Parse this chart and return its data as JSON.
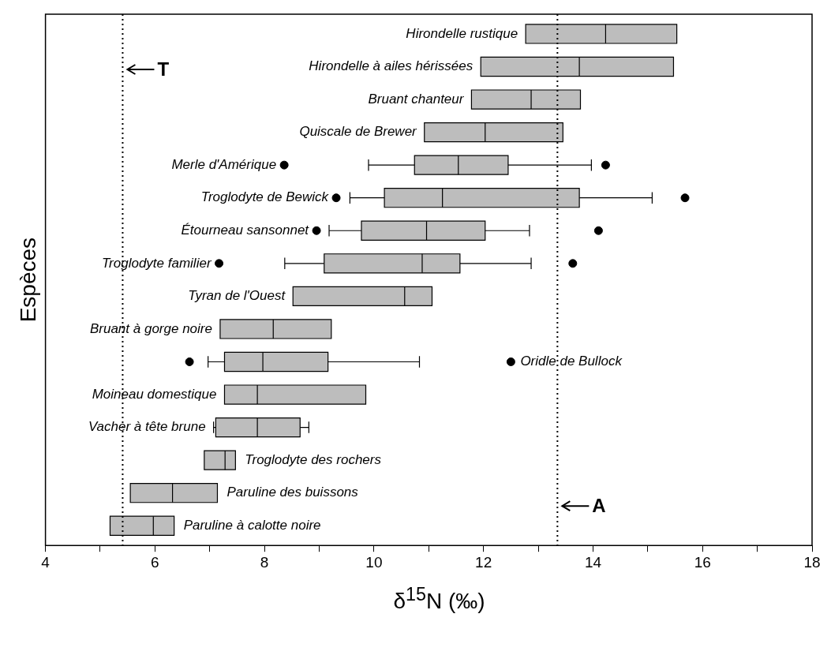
{
  "chart_data": {
    "type": "box",
    "orientation": "horizontal",
    "xlabel": "δ$^{15}$N (‰)",
    "ylabel": "Espèces",
    "categories": [
      "Hirondelle rustique",
      "Hirondelle à ailes hérissées",
      "Bruant chanteur",
      "Quiscale de Brewer",
      "Merle d'Amérique",
      "Troglodyte de Bewick",
      "Étourneau sansonnet",
      "Troglodyte familier",
      "Tyran de l'Ouest",
      "Bruant à gorge noire",
      "Oridle de Bullock",
      "Moineau domestique",
      "Vacher à tête brune",
      "Troglodyte des rochers",
      "Paruline des buissons",
      "Paruline à calotte noire"
    ],
    "boxes": [
      {
        "low": 12.77,
        "q1": 12.77,
        "median": 14.23,
        "q3": 15.53,
        "high": 15.53
      },
      {
        "low": 11.95,
        "q1": 11.95,
        "median": 13.75,
        "q3": 15.47,
        "high": 15.47
      },
      {
        "low": 11.78,
        "q1": 11.78,
        "median": 12.87,
        "q3": 13.77,
        "high": 13.77
      },
      {
        "low": 10.92,
        "q1": 10.92,
        "median": 12.03,
        "q3": 13.45,
        "high": 13.45
      },
      {
        "low": 9.9,
        "q1": 10.74,
        "median": 11.54,
        "q3": 12.45,
        "high": 13.97,
        "outliers": [
          8.36,
          14.23
        ]
      },
      {
        "low": 9.56,
        "q1": 10.19,
        "median": 11.25,
        "q3": 13.75,
        "high": 15.08,
        "outliers": [
          9.31,
          15.68
        ]
      },
      {
        "low": 9.18,
        "q1": 9.77,
        "median": 10.96,
        "q3": 12.03,
        "high": 12.84,
        "outliers": [
          8.95,
          14.1
        ]
      },
      {
        "low": 8.37,
        "q1": 9.09,
        "median": 10.88,
        "q3": 11.57,
        "high": 12.87,
        "outliers": [
          7.17,
          13.63
        ]
      },
      {
        "low": 8.52,
        "q1": 8.52,
        "median": 10.56,
        "q3": 11.06,
        "high": 11.06
      },
      {
        "low": 7.19,
        "q1": 7.19,
        "median": 8.16,
        "q3": 9.22,
        "high": 9.22
      },
      {
        "low": 6.97,
        "q1": 7.27,
        "median": 7.97,
        "q3": 9.16,
        "high": 10.83,
        "outliers": [
          6.63,
          12.5
        ]
      },
      {
        "low": 7.27,
        "q1": 7.27,
        "median": 7.87,
        "q3": 9.85,
        "high": 9.85
      },
      {
        "low": 7.07,
        "q1": 7.11,
        "median": 7.87,
        "q3": 8.65,
        "high": 8.81
      },
      {
        "low": 6.9,
        "q1": 6.9,
        "median": 7.28,
        "q3": 7.47,
        "high": 7.47
      },
      {
        "low": 5.55,
        "q1": 5.55,
        "median": 6.32,
        "q3": 7.14,
        "high": 7.14
      },
      {
        "low": 5.18,
        "q1": 5.18,
        "median": 5.97,
        "q3": 6.35,
        "high": 6.35
      }
    ],
    "color": "#bdbdbd",
    "xlim": [
      4,
      18
    ],
    "xticks": [
      4,
      {
        "value": 5,
        "label": null
      },
      6,
      {
        "value": 7,
        "label": null
      },
      8,
      {
        "value": 9,
        "label": null
      },
      10,
      {
        "value": 11,
        "label": null
      },
      12,
      {
        "value": 13,
        "label": null
      },
      14,
      {
        "value": 15,
        "label": null
      },
      16,
      {
        "value": 17,
        "label": null
      },
      18
    ],
    "tick_labels": "x",
    "grid": false,
    "legend": false,
    "marker": "circle",
    "ref_lines": [
      {
        "axis": "x",
        "value": 5.41,
        "label": "T",
        "line_style": "dotted"
      },
      {
        "axis": "x",
        "value": 13.35,
        "label": "A",
        "line_style": "dotted"
      }
    ]
  }
}
